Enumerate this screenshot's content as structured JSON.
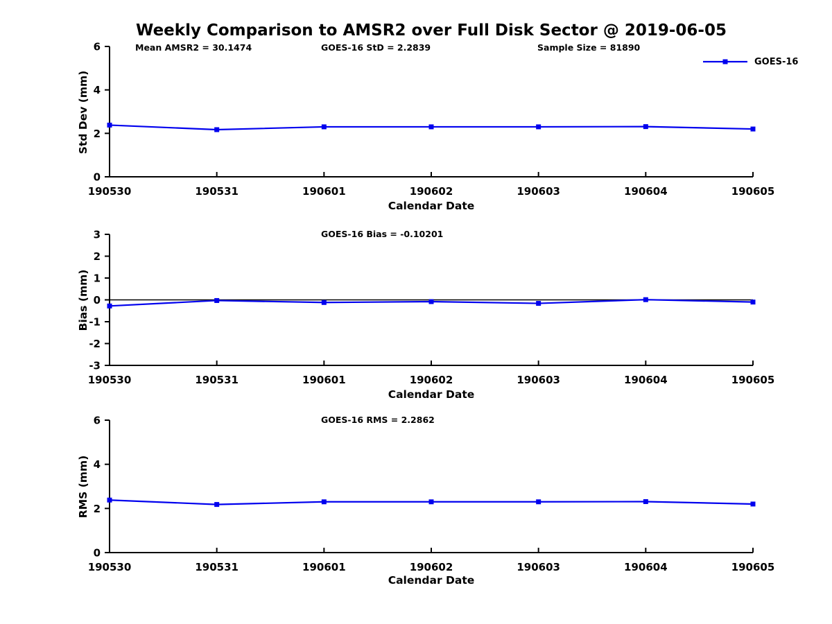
{
  "figure_title": "Weekly Comparison to AMSR2 over Full Disk Sector @ 2019-06-05",
  "legend": {
    "label": "GOES-16"
  },
  "colors": {
    "series": "#0000ee",
    "axis": "#000000",
    "zero_line": "#000000"
  },
  "chart_data": [
    {
      "type": "line",
      "name": "std-dev-subplot",
      "annotations": [
        "Mean AMSR2 = 30.1474",
        "GOES-16 StD = 2.2839",
        "Sample Size = 81890"
      ],
      "categories": [
        "190530",
        "190531",
        "190601",
        "190602",
        "190603",
        "190604",
        "190605"
      ],
      "series": [
        {
          "name": "GOES-16",
          "values": [
            2.38,
            2.17,
            2.3,
            2.3,
            2.3,
            2.31,
            2.2
          ]
        }
      ],
      "xlabel": "Calendar Date",
      "ylabel": "Std Dev (mm)",
      "ylim": [
        0,
        6
      ],
      "yticks": [
        0,
        2,
        4,
        6
      ],
      "grid": false,
      "zero_line": false,
      "legend_position": "top-right-outside"
    },
    {
      "type": "line",
      "name": "bias-subplot",
      "annotations": [
        "GOES-16 Bias  = -0.10201"
      ],
      "categories": [
        "190530",
        "190531",
        "190601",
        "190602",
        "190603",
        "190604",
        "190605"
      ],
      "series": [
        {
          "name": "GOES-16",
          "values": [
            -0.28,
            -0.03,
            -0.12,
            -0.08,
            -0.16,
            0.01,
            -0.1
          ]
        }
      ],
      "xlabel": "Calendar Date",
      "ylabel": "Bias (mm)",
      "ylim": [
        -3,
        3
      ],
      "yticks": [
        -3,
        -2,
        -1,
        0,
        1,
        2,
        3
      ],
      "grid": false,
      "zero_line": true,
      "legend_position": "none"
    },
    {
      "type": "line",
      "name": "rms-subplot",
      "annotations": [
        "GOES-16 RMS = 2.2862"
      ],
      "categories": [
        "190530",
        "190531",
        "190601",
        "190602",
        "190603",
        "190604",
        "190605"
      ],
      "series": [
        {
          "name": "GOES-16",
          "values": [
            2.38,
            2.18,
            2.3,
            2.3,
            2.3,
            2.31,
            2.2
          ]
        }
      ],
      "xlabel": "Calendar Date",
      "ylabel": "RMS (mm)",
      "ylim": [
        0,
        6
      ],
      "yticks": [
        0,
        2,
        4,
        6
      ],
      "grid": false,
      "zero_line": false,
      "legend_position": "none"
    }
  ]
}
